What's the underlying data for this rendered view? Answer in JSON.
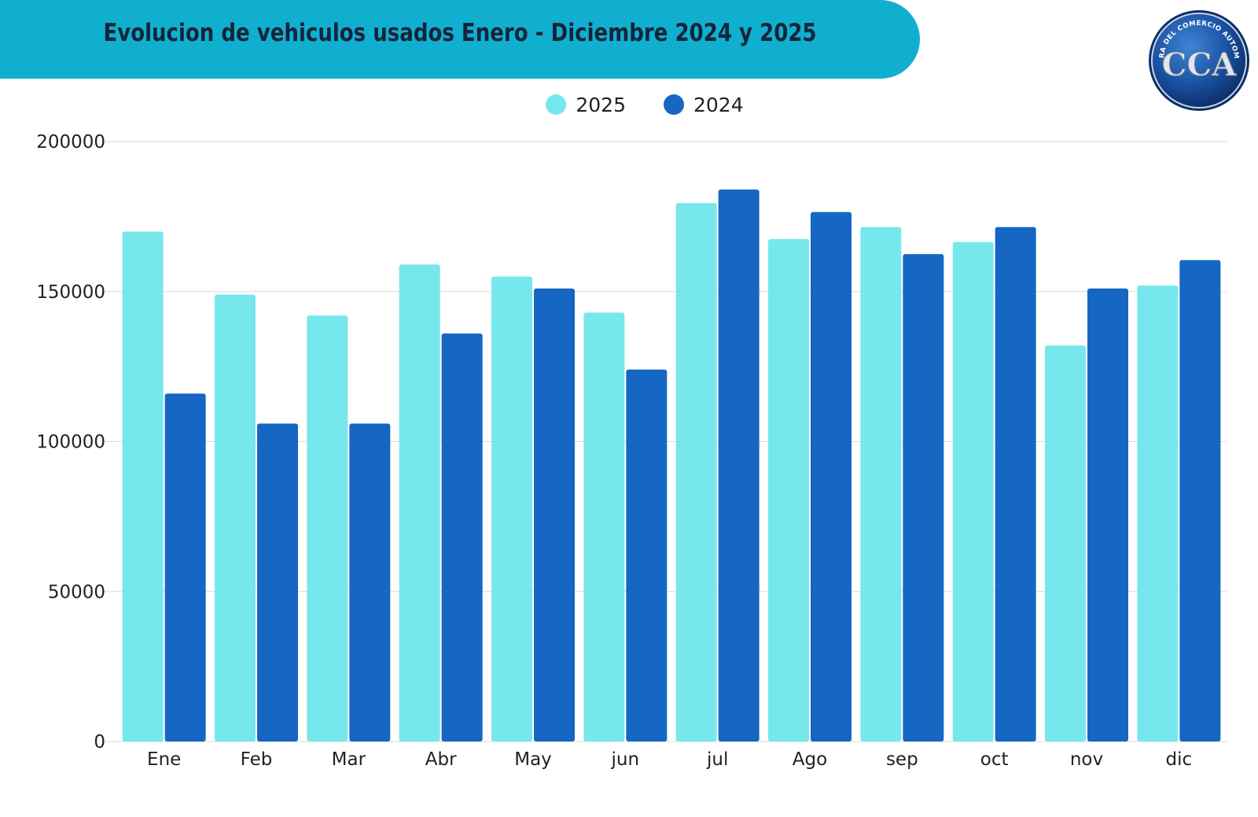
{
  "header": {
    "title": "Evolucion de vehiculos usados Enero - Diciembre 2024 y 2025"
  },
  "logo": {
    "text": "CAMARA DEL COMERCIO AUTOMOTOR",
    "initials": "CCA"
  },
  "colors": {
    "banner": "#11afcf",
    "series_2025": "#77e7ee",
    "series_2024": "#1567c3",
    "grid": "#d9d9d9"
  },
  "chart_data": {
    "type": "bar",
    "categories": [
      "Ene",
      "Feb",
      "Mar",
      "Abr",
      "May",
      "jun",
      "jul",
      "Ago",
      "sep",
      "oct",
      "nov",
      "dic"
    ],
    "series": [
      {
        "name": "2025",
        "color": "#77e7ee",
        "values": [
          170000,
          149000,
          142000,
          159000,
          155000,
          143000,
          179500,
          167500,
          171500,
          166500,
          132000,
          152000
        ]
      },
      {
        "name": "2024",
        "color": "#1567c3",
        "values": [
          116000,
          106000,
          106000,
          136000,
          151000,
          124000,
          184000,
          176500,
          162500,
          171500,
          151000,
          160500
        ]
      }
    ],
    "title": "Evolucion de vehiculos usados Enero - Diciembre 2024 y 2025",
    "xlabel": "",
    "ylabel": "",
    "ylim": [
      0,
      200000
    ],
    "yticks": [
      0,
      50000,
      100000,
      150000,
      200000
    ],
    "grid": true,
    "legend_position": "top-center"
  }
}
